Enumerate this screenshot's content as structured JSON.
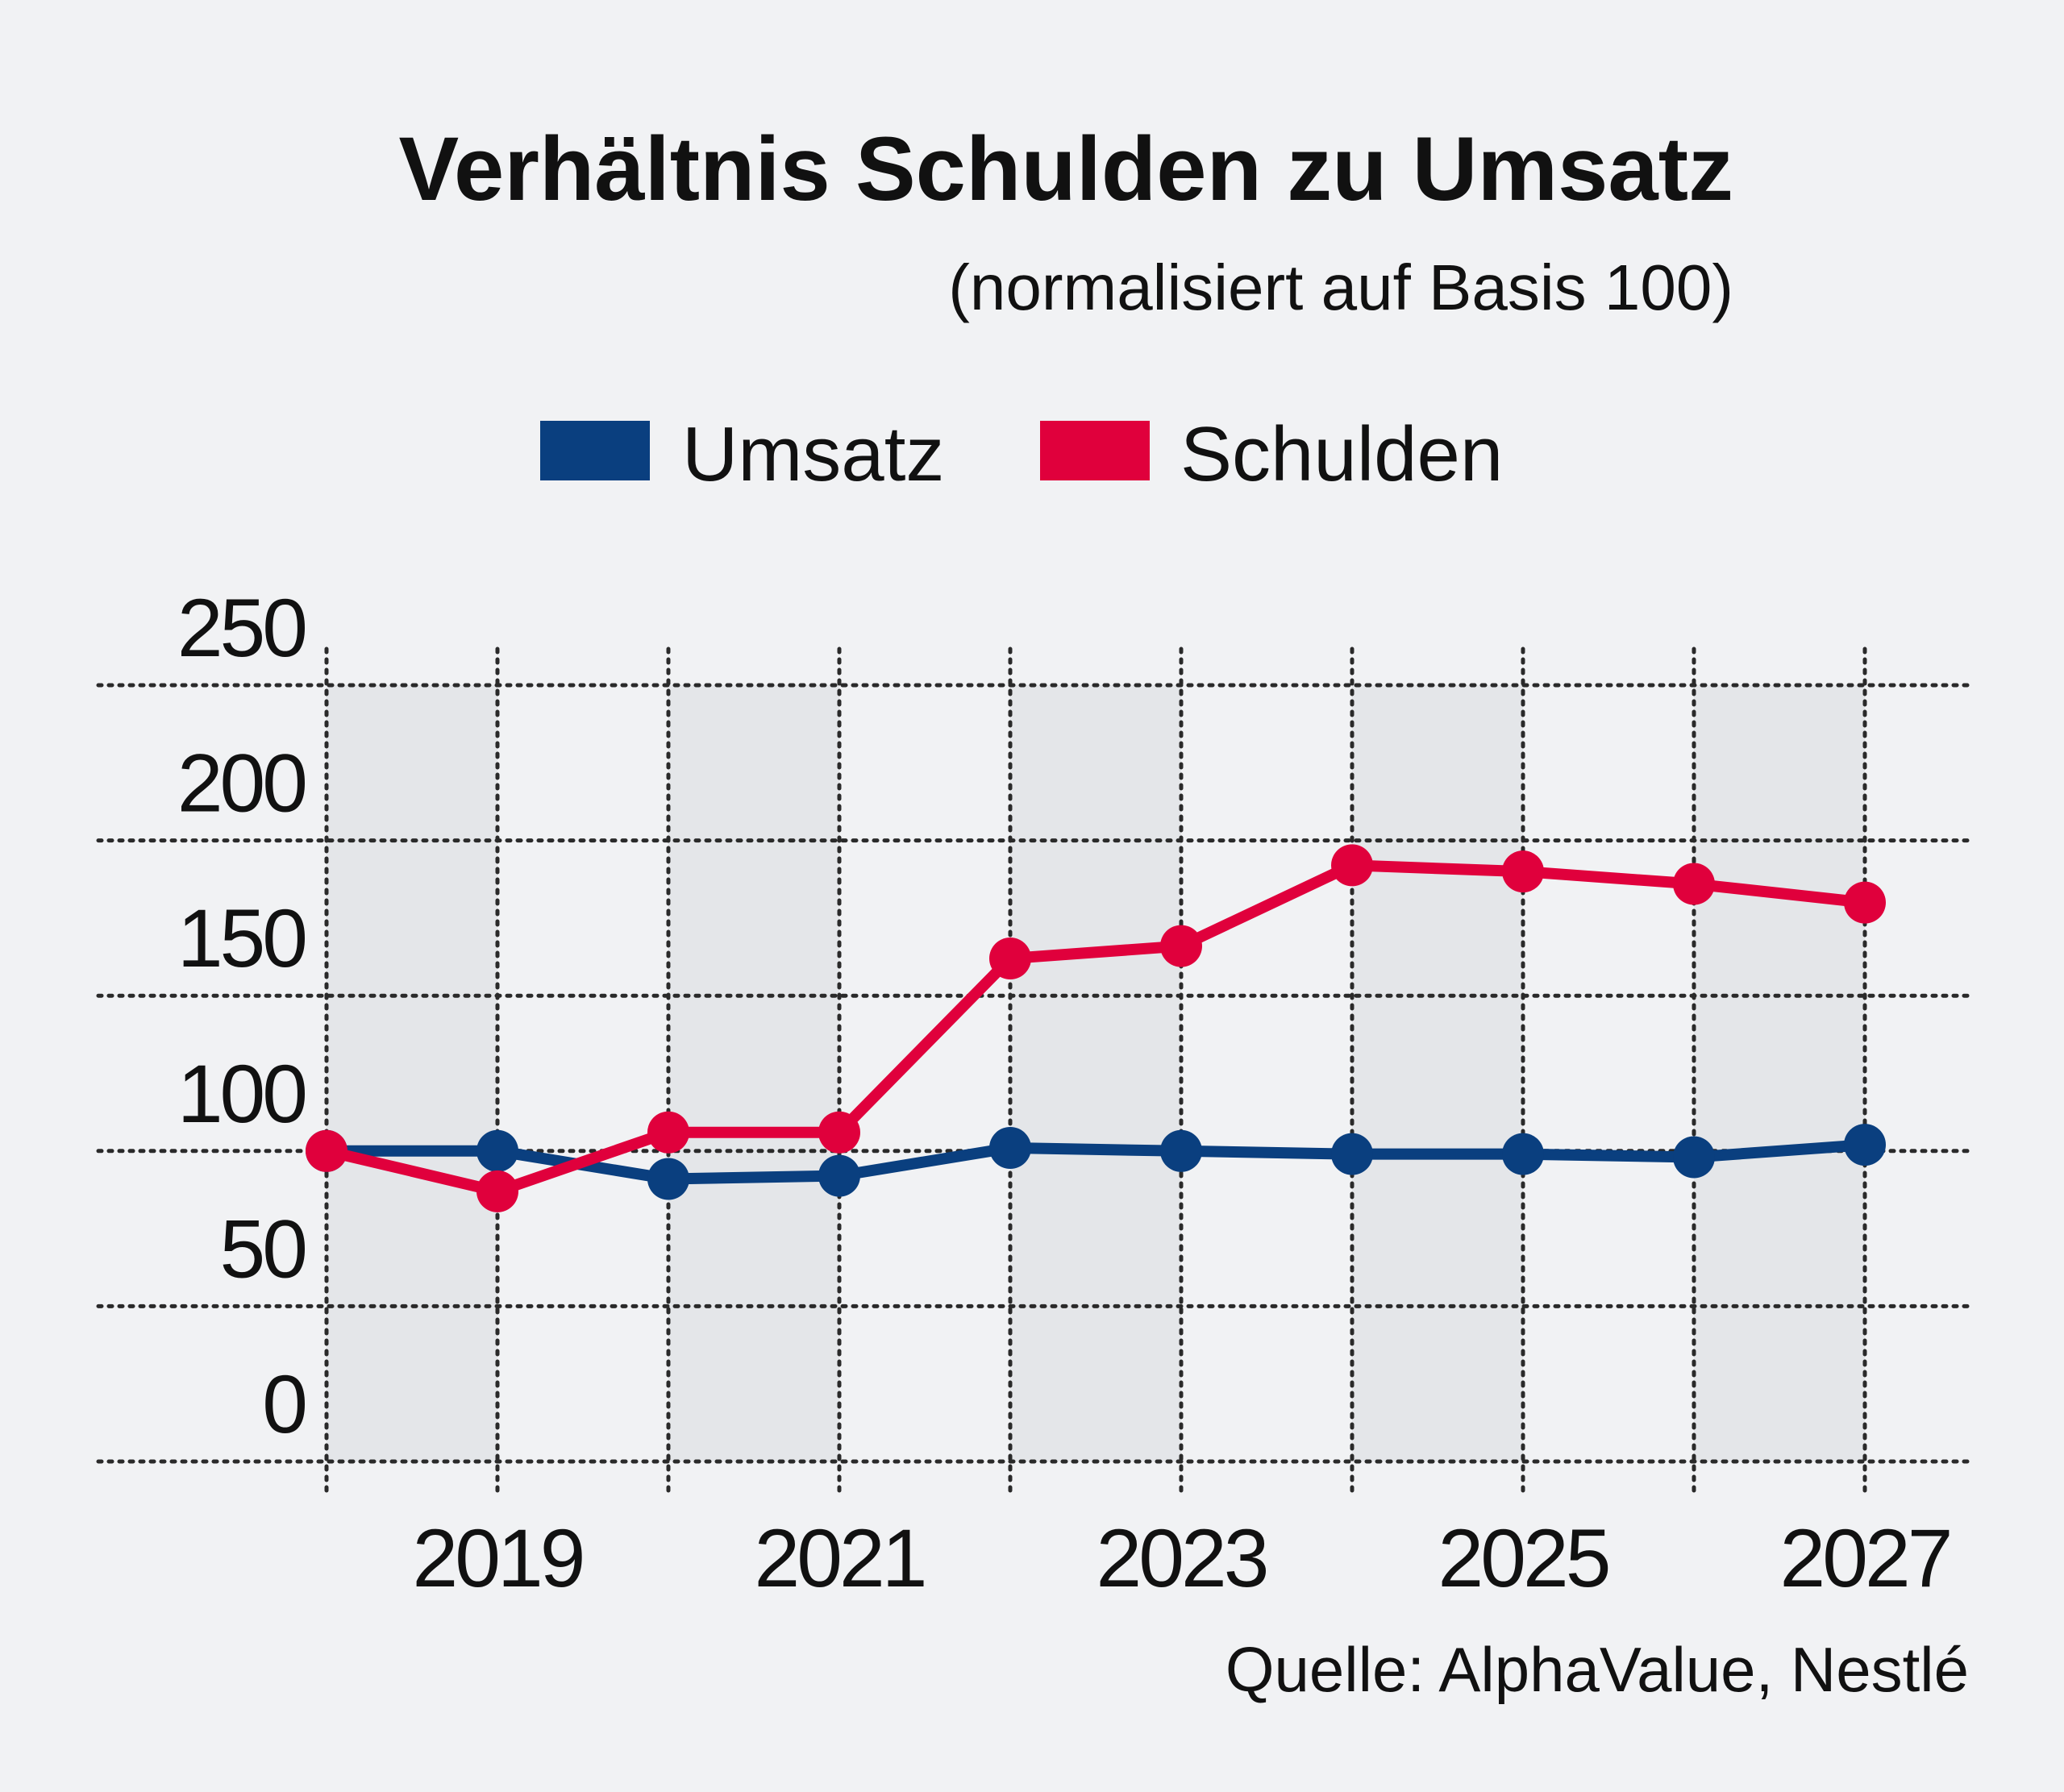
{
  "title": "Verhältnis Schulden zu Umsatz",
  "subtitle": "(normalisiert auf Basis 100)",
  "source": "Quelle: AlphaValue, Nestlé",
  "legend": [
    {
      "label": "Umsatz",
      "color": "#0a3f7f"
    },
    {
      "label": "Schulden",
      "color": "#e0003c"
    }
  ],
  "chart_data": {
    "type": "line",
    "title": "Verhältnis Schulden zu Umsatz",
    "subtitle": "(normalisiert auf Basis 100)",
    "x": [
      2018,
      2019,
      2020,
      2021,
      2022,
      2023,
      2024,
      2025,
      2026,
      2027
    ],
    "x_tick_labels": [
      "2019",
      "2021",
      "2023",
      "2025",
      "2027"
    ],
    "x_tick_values": [
      2019,
      2021,
      2023,
      2025,
      2027
    ],
    "ylim": [
      0,
      250
    ],
    "y_ticks": [
      0,
      50,
      100,
      150,
      200,
      250
    ],
    "y_tick_labels": [
      "0",
      "50",
      "100",
      "150",
      "200",
      "250"
    ],
    "xlabel": "",
    "ylabel": "",
    "grid": true,
    "legend_position": "top-center",
    "series": [
      {
        "name": "Umsatz",
        "color": "#0a3f7f",
        "values": [
          100,
          100,
          91,
          92,
          101,
          100,
          99,
          99,
          98,
          102
        ]
      },
      {
        "name": "Schulden",
        "color": "#e0003c",
        "values": [
          100,
          87,
          106,
          106,
          162,
          166,
          192,
          190,
          186,
          180
        ]
      }
    ]
  }
}
